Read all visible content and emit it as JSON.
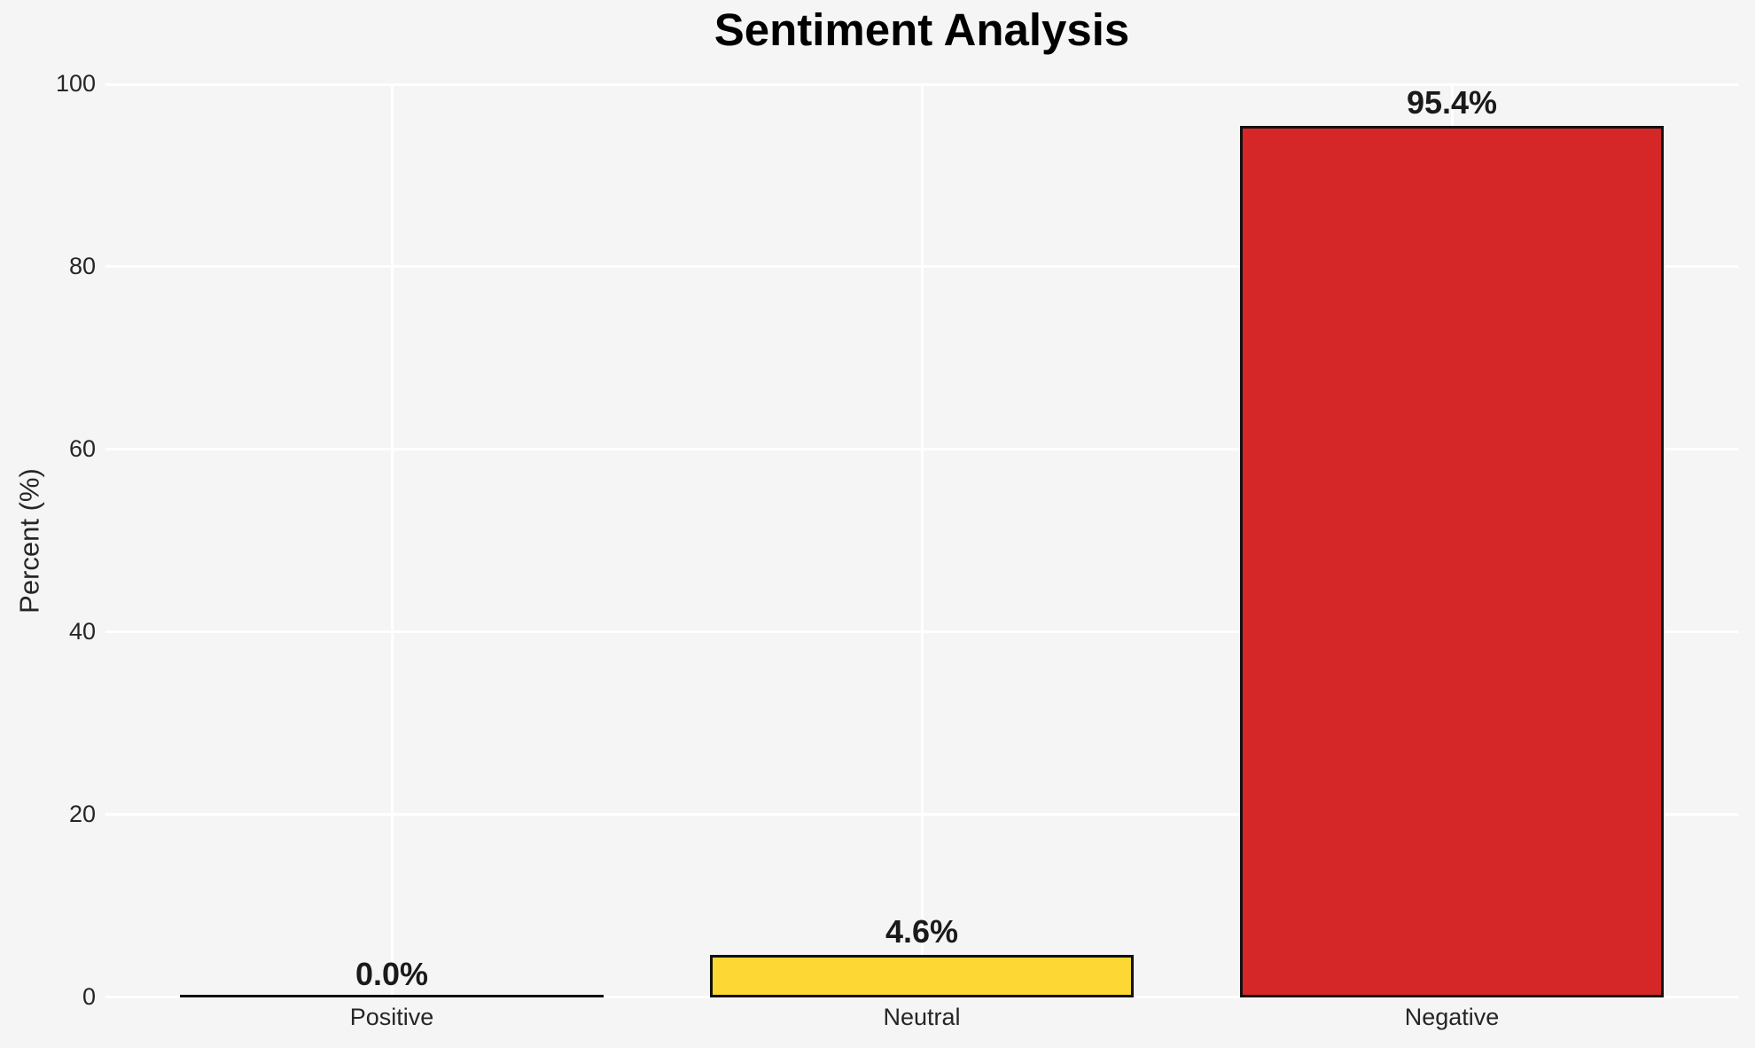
{
  "chart_data": {
    "type": "bar",
    "title": "Sentiment Analysis",
    "ylabel": "Percent (%)",
    "xlabel": "",
    "categories": [
      "Positive",
      "Neutral",
      "Negative"
    ],
    "values": [
      0.0,
      4.6,
      95.4
    ],
    "value_labels": [
      "0.0%",
      "4.6%",
      "95.4%"
    ],
    "bar_colors": [
      "",
      "#FDD835",
      "#D62728"
    ],
    "bar_edge_color": "#111111",
    "ylim": [
      0,
      100
    ],
    "yticks": [
      0,
      20,
      40,
      60,
      80,
      100
    ],
    "grid": true,
    "legend": false,
    "colors": {
      "background": "#F5F5F6",
      "gridline": "#FFFFFF",
      "title_text": "#000000",
      "tick_text": "#262626",
      "value_label_text": "#1A1A1A"
    }
  }
}
